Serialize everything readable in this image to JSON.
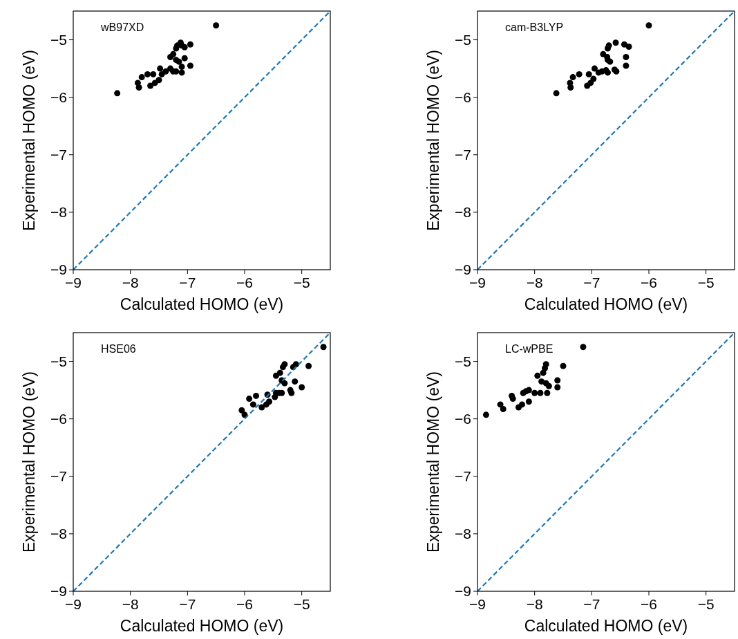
{
  "chart_data": [
    {
      "type": "scatter",
      "title": "wB97XD",
      "xlabel": "Calculated HOMO (eV)",
      "ylabel": "Experimental HOMO (eV)",
      "xlim": [
        -9,
        -4.5
      ],
      "ylim": [
        -9,
        -4.5
      ],
      "xticks": [
        {
          "value": -9,
          "label": "−9"
        },
        {
          "value": -8,
          "label": "−8"
        },
        {
          "value": -7,
          "label": "−7"
        },
        {
          "value": -6,
          "label": "−6"
        },
        {
          "value": -5,
          "label": "−5"
        }
      ],
      "yticks": [
        {
          "value": -9,
          "label": "−9"
        },
        {
          "value": -8,
          "label": "−8"
        },
        {
          "value": -7,
          "label": "−7"
        },
        {
          "value": -6,
          "label": "−6"
        },
        {
          "value": -5,
          "label": "−5"
        }
      ],
      "marker": "circle",
      "grid": false,
      "series": [
        {
          "type": "scatter",
          "color": "#000000",
          "x": [
            -8.23,
            -6.5,
            -7.87,
            -7.85,
            -7.8,
            -7.7,
            -7.65,
            -7.57,
            -7.6,
            -7.5,
            -7.48,
            -7.45,
            -7.38,
            -7.3,
            -7.25,
            -7.2,
            -7.3,
            -7.25,
            -7.2,
            -7.18,
            -7.12,
            -7.1,
            -7.05,
            -6.95,
            -7.2,
            -7.15,
            -7.05,
            -7.1,
            -7.1,
            -6.95
          ],
          "values": [
            -5.93,
            -4.75,
            -5.75,
            -5.83,
            -5.65,
            -5.6,
            -5.8,
            -5.75,
            -5.6,
            -5.7,
            -5.5,
            -5.6,
            -5.55,
            -5.5,
            -5.55,
            -5.55,
            -5.3,
            -5.25,
            -5.15,
            -5.1,
            -5.05,
            -5.1,
            -5.13,
            -5.08,
            -5.35,
            -5.38,
            -5.32,
            -5.47,
            -5.57,
            -5.45
          ]
        },
        {
          "type": "line",
          "color": "#1f77b4",
          "line_style": "dashed",
          "marker": "none",
          "x": [
            -9,
            -4.5
          ],
          "values": [
            -9,
            -4.5
          ]
        }
      ]
    },
    {
      "type": "scatter",
      "title": "cam-B3LYP",
      "xlabel": "Calculated HOMO (eV)",
      "ylabel": "Experimental HOMO (eV)",
      "xlim": [
        -9,
        -4.5
      ],
      "ylim": [
        -9,
        -4.5
      ],
      "xticks": [
        {
          "value": -9,
          "label": "−9"
        },
        {
          "value": -8,
          "label": "−8"
        },
        {
          "value": -7,
          "label": "−7"
        },
        {
          "value": -6,
          "label": "−6"
        },
        {
          "value": -5,
          "label": "−5"
        }
      ],
      "yticks": [
        {
          "value": -9,
          "label": "−9"
        },
        {
          "value": -8,
          "label": "−8"
        },
        {
          "value": -7,
          "label": "−7"
        },
        {
          "value": -6,
          "label": "−6"
        },
        {
          "value": -5,
          "label": "−5"
        }
      ],
      "marker": "circle",
      "grid": false,
      "series": [
        {
          "type": "scatter",
          "color": "#000000",
          "x": [
            -7.62,
            -6.0,
            -7.38,
            -7.37,
            -7.33,
            -7.22,
            -7.08,
            -7.02,
            -7.05,
            -6.95,
            -6.97,
            -6.88,
            -6.82,
            -6.75,
            -6.72,
            -6.8,
            -6.73,
            -6.72,
            -6.7,
            -6.58,
            -6.43,
            -6.35,
            -6.72,
            -6.68,
            -6.4,
            -6.6,
            -6.57,
            -6.4
          ],
          "values": [
            -5.93,
            -4.75,
            -5.75,
            -5.83,
            -5.65,
            -5.6,
            -5.8,
            -5.75,
            -5.6,
            -5.5,
            -5.68,
            -5.57,
            -5.55,
            -5.53,
            -5.57,
            -5.25,
            -5.3,
            -5.15,
            -5.1,
            -5.05,
            -5.08,
            -5.12,
            -5.35,
            -5.38,
            -5.3,
            -5.52,
            -5.55,
            -5.45
          ]
        },
        {
          "type": "line",
          "color": "#1f77b4",
          "line_style": "dashed",
          "marker": "none",
          "x": [
            -9,
            -4.5
          ],
          "values": [
            -9,
            -4.5
          ]
        }
      ]
    },
    {
      "type": "scatter",
      "title": "HSE06",
      "xlabel": "Calculated HOMO (eV)",
      "ylabel": "Experimental HOMO (eV)",
      "xlim": [
        -9,
        -4.5
      ],
      "ylim": [
        -9,
        -4.5
      ],
      "xticks": [
        {
          "value": -9,
          "label": "−9"
        },
        {
          "value": -8,
          "label": "−8"
        },
        {
          "value": -7,
          "label": "−7"
        },
        {
          "value": -6,
          "label": "−6"
        },
        {
          "value": -5,
          "label": "−5"
        }
      ],
      "yticks": [
        {
          "value": -9,
          "label": "−9"
        },
        {
          "value": -8,
          "label": "−8"
        },
        {
          "value": -7,
          "label": "−7"
        },
        {
          "value": -6,
          "label": "−6"
        },
        {
          "value": -5,
          "label": "−5"
        }
      ],
      "marker": "circle",
      "grid": false,
      "series": [
        {
          "type": "scatter",
          "color": "#000000",
          "x": [
            -6.05,
            -6.0,
            -5.92,
            -5.85,
            -5.8,
            -5.7,
            -5.62,
            -5.57,
            -5.6,
            -5.47,
            -5.45,
            -5.4,
            -5.35,
            -5.45,
            -5.38,
            -5.33,
            -5.3,
            -5.15,
            -5.1,
            -5.35,
            -5.3,
            -5.12,
            -5.2,
            -5.18,
            -5.0,
            -4.88,
            -4.62
          ],
          "values": [
            -5.85,
            -5.93,
            -5.65,
            -5.75,
            -5.6,
            -5.8,
            -5.75,
            -5.7,
            -5.58,
            -5.62,
            -5.55,
            -5.55,
            -5.55,
            -5.25,
            -5.2,
            -5.1,
            -5.05,
            -5.1,
            -5.05,
            -5.33,
            -5.38,
            -5.35,
            -5.5,
            -5.55,
            -5.45,
            -5.08,
            -4.75
          ]
        },
        {
          "type": "line",
          "color": "#1f77b4",
          "line_style": "dashed",
          "marker": "none",
          "x": [
            -9,
            -4.5
          ],
          "values": [
            -9,
            -4.5
          ]
        }
      ]
    },
    {
      "type": "scatter",
      "title": "LC-wPBE",
      "xlabel": "Calculated HOMO (eV)",
      "ylabel": "Experimental HOMO (eV)",
      "xlim": [
        -9,
        -4.5
      ],
      "ylim": [
        -9,
        -4.5
      ],
      "xticks": [
        {
          "value": -9,
          "label": "−9"
        },
        {
          "value": -8,
          "label": "−8"
        },
        {
          "value": -7,
          "label": "−7"
        },
        {
          "value": -6,
          "label": "−6"
        },
        {
          "value": -5,
          "label": "−5"
        }
      ],
      "yticks": [
        {
          "value": -9,
          "label": "−9"
        },
        {
          "value": -8,
          "label": "−8"
        },
        {
          "value": -7,
          "label": "−7"
        },
        {
          "value": -6,
          "label": "−6"
        },
        {
          "value": -5,
          "label": "−5"
        }
      ],
      "marker": "circle",
      "grid": false,
      "series": [
        {
          "type": "scatter",
          "color": "#000000",
          "x": [
            -8.85,
            -7.15,
            -8.6,
            -8.55,
            -8.4,
            -8.38,
            -8.28,
            -8.22,
            -8.2,
            -8.15,
            -8.1,
            -8.1,
            -8.0,
            -7.9,
            -7.95,
            -7.88,
            -7.85,
            -7.82,
            -7.8,
            -7.8,
            -7.75,
            -7.6,
            -7.6,
            -7.78,
            -7.5
          ],
          "values": [
            -5.93,
            -4.75,
            -5.75,
            -5.83,
            -5.6,
            -5.65,
            -5.8,
            -5.75,
            -5.55,
            -5.52,
            -5.5,
            -5.7,
            -5.55,
            -5.55,
            -5.25,
            -5.35,
            -5.2,
            -5.12,
            -5.05,
            -5.38,
            -5.43,
            -5.33,
            -5.45,
            -5.55,
            -5.08
          ]
        },
        {
          "type": "line",
          "color": "#1f77b4",
          "line_style": "dashed",
          "marker": "none",
          "x": [
            -9,
            -4.5
          ],
          "values": [
            -9,
            -4.5
          ]
        }
      ]
    }
  ]
}
